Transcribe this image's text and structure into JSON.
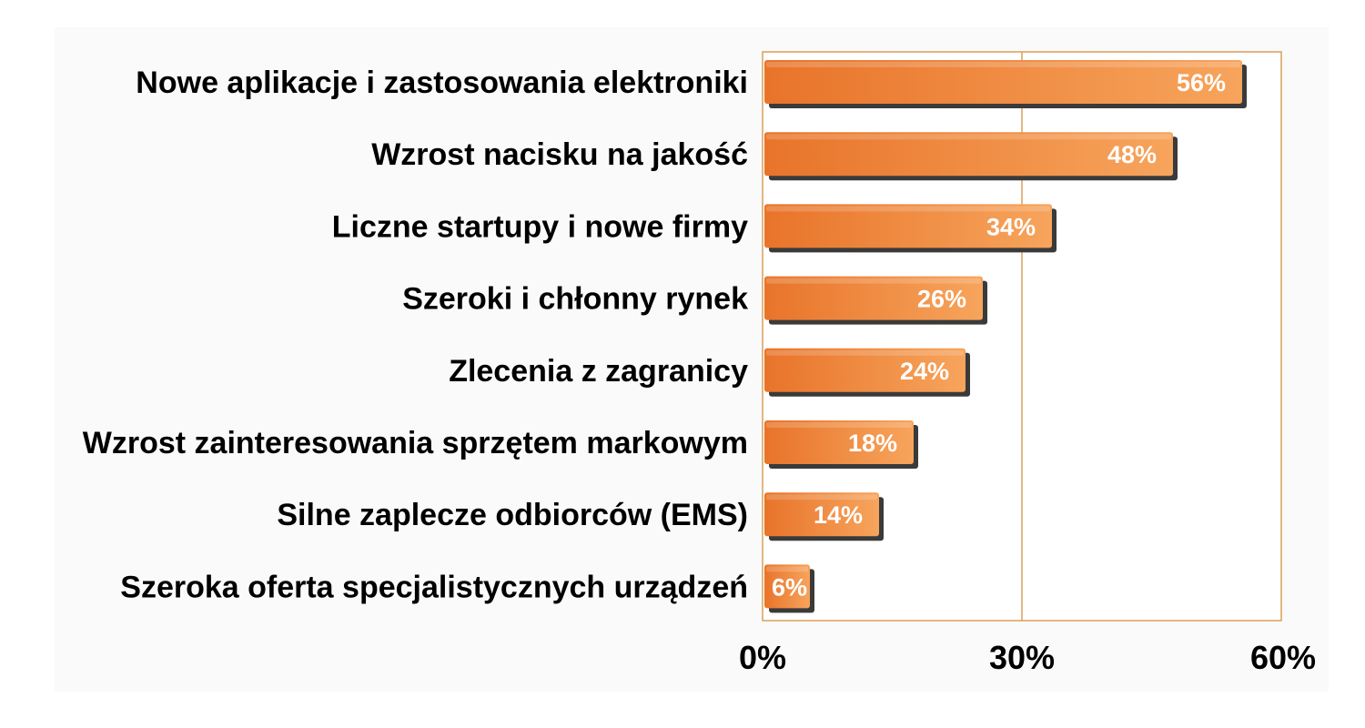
{
  "chart_data": {
    "type": "bar",
    "orientation": "horizontal",
    "categories": [
      "Nowe aplikacje i zastosowania elektroniki",
      "Wzrost nacisku na jakość",
      "Liczne startupy i nowe firmy",
      "Szeroki i chłonny rynek",
      "Zlecenia z zagranicy",
      "Wzrost zainteresowania sprzętem markowym",
      "Silne zaplecze odbiorców (EMS)",
      "Szeroka oferta specjalistycznych urządzeń"
    ],
    "values": [
      56,
      48,
      34,
      26,
      24,
      18,
      14,
      6
    ],
    "value_labels": [
      "56%",
      "48%",
      "34%",
      "26%",
      "24%",
      "18%",
      "14%",
      "6%"
    ],
    "xlim": [
      0,
      60
    ],
    "xticks": [
      0,
      30,
      60
    ],
    "xtick_labels": [
      "0%",
      "30%",
      "60%"
    ],
    "grid": "vertical gridline at 30%",
    "legend": "none",
    "colors": {
      "bar_light": "#f7a45c",
      "bar_dark": "#e8742a",
      "bar_shadow": "#3a3a3a",
      "frame": "#d9a05a",
      "plot_background": "#ffffff",
      "outer_background": "#fafafa"
    }
  }
}
